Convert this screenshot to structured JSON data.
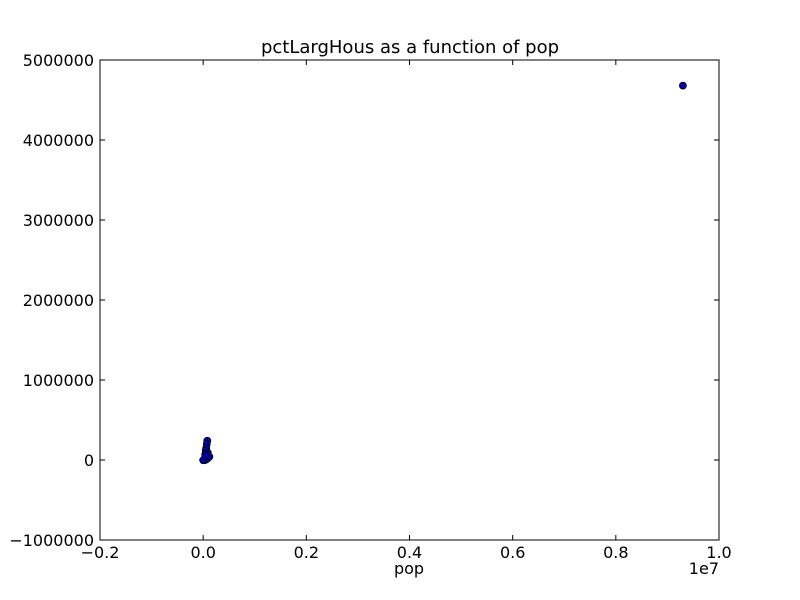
{
  "chart_data": {
    "type": "scatter",
    "title": "pctLargHous as a function of pop",
    "xlabel": "pop",
    "ylabel": "",
    "x_offset_text": "1e7",
    "xlim": [
      -0.2,
      1.0
    ],
    "ylim": [
      -1000000,
      5000000
    ],
    "x_ticks": [
      -0.2,
      0.0,
      0.2,
      0.4,
      0.6,
      0.8,
      1.0
    ],
    "x_tick_labels": [
      "−0.2",
      "0.0",
      "0.2",
      "0.4",
      "0.6",
      "0.8",
      "1.0"
    ],
    "y_ticks": [
      -1000000,
      0,
      1000000,
      2000000,
      3000000,
      4000000,
      5000000
    ],
    "y_tick_labels": [
      "−1000000",
      "0",
      "1000000",
      "2000000",
      "3000000",
      "4000000",
      "5000000"
    ],
    "grid": false,
    "marker_color": "#0000aa",
    "points": [
      {
        "x": 0.93,
        "y": 4680000
      },
      {
        "x": 0.008,
        "y": 240000
      },
      {
        "x": 0.007,
        "y": 200000
      },
      {
        "x": 0.006,
        "y": 150000
      },
      {
        "x": 0.005,
        "y": 120000
      },
      {
        "x": 0.009,
        "y": 90000
      },
      {
        "x": 0.004,
        "y": 70000
      },
      {
        "x": 0.007,
        "y": 50000
      },
      {
        "x": 0.01,
        "y": 30000
      },
      {
        "x": 0.003,
        "y": 20000
      },
      {
        "x": 0.006,
        "y": 10000
      },
      {
        "x": 0.002,
        "y": 5000
      },
      {
        "x": 0.001,
        "y": 0
      },
      {
        "x": 0.004,
        "y": 0
      },
      {
        "x": 0.008,
        "y": 15000
      },
      {
        "x": 0.012,
        "y": 40000
      },
      {
        "x": 0.0,
        "y": -3000
      },
      {
        "x": 0.005,
        "y": 60000
      }
    ]
  }
}
